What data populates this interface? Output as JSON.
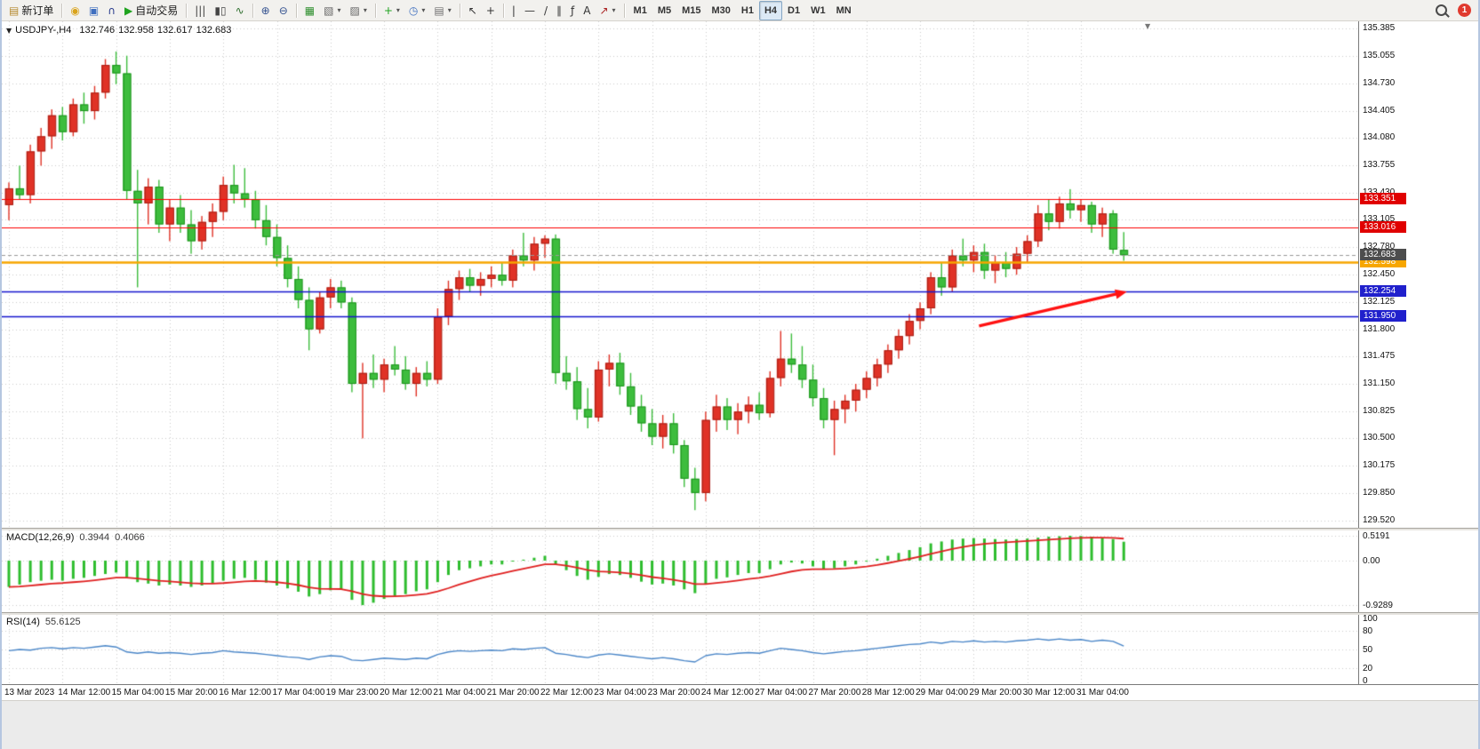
{
  "toolbar": {
    "groups": [
      {
        "items": [
          {
            "name": "new-order-button",
            "glyph": "▤",
            "glyph_color": "#b5892e",
            "label": "新订单"
          }
        ]
      },
      {
        "items": [
          {
            "name": "market-watch-button",
            "glyph": "◉",
            "glyph_color": "#d9a31b"
          },
          {
            "name": "navigator-button",
            "glyph": "▣",
            "glyph_color": "#3f6fbf"
          },
          {
            "name": "support-button",
            "glyph": "∩",
            "glyph_color": "#273a8c"
          },
          {
            "name": "auto-trading-button",
            "glyph": "▶",
            "glyph_color": "#1fa31f",
            "label": "自动交易"
          }
        ]
      },
      {
        "items": [
          {
            "name": "bar-chart-button",
            "glyph": "|||",
            "glyph_color": "#444444"
          },
          {
            "name": "candlestick-chart-button",
            "glyph": "▮▯",
            "glyph_color": "#444444"
          },
          {
            "name": "line-chart-button",
            "glyph": "∿",
            "glyph_color": "#2f6f2f"
          }
        ]
      },
      {
        "items": [
          {
            "name": "zoom-in-button",
            "glyph": "⊕",
            "glyph_color": "#33518f"
          },
          {
            "name": "zoom-out-button",
            "glyph": "⊖",
            "glyph_color": "#33518f"
          }
        ]
      },
      {
        "items": [
          {
            "name": "tile-windows-button",
            "glyph": "▦",
            "glyph_color": "#2f8f2f"
          },
          {
            "name": "new-chart-button",
            "glyph": "▧",
            "glyph_color": "#666666",
            "dropdown": true
          },
          {
            "name": "profiles-button",
            "glyph": "▨",
            "glyph_color": "#666666",
            "dropdown": true
          }
        ]
      },
      {
        "items": [
          {
            "name": "indicators-button",
            "glyph": "+",
            "glyph_color": "#1fa31f",
            "dropdown": true
          },
          {
            "name": "periods-button",
            "glyph": "◷",
            "glyph_color": "#3f6fbf",
            "dropdown": true
          },
          {
            "name": "templates-button",
            "glyph": "▤",
            "glyph_color": "#707070",
            "dropdown": true
          }
        ]
      },
      {
        "items": [
          {
            "name": "cursor-button",
            "glyph": "↖",
            "glyph_color": "#333333"
          },
          {
            "name": "crosshair-button",
            "glyph": "+",
            "glyph_color": "#333333"
          }
        ]
      },
      {
        "items": [
          {
            "name": "vertical-line-button",
            "glyph": "|",
            "glyph_color": "#333333"
          },
          {
            "name": "horizontal-line-button",
            "glyph": "—",
            "glyph_color": "#333333"
          },
          {
            "name": "trendline-button",
            "glyph": "/",
            "glyph_color": "#333333"
          },
          {
            "name": "channel-button",
            "glyph": "∥",
            "glyph_color": "#333333"
          },
          {
            "name": "fibonacci-button",
            "glyph": "ƒ",
            "glyph_color": "#333333"
          },
          {
            "name": "text-button",
            "glyph": "A",
            "glyph_color": "#333333"
          },
          {
            "name": "arrows-button",
            "glyph": "↗",
            "glyph_color": "#aa2222",
            "dropdown": true
          }
        ]
      },
      {
        "kind": "timeframes"
      }
    ],
    "timeframes": [
      {
        "label": "M1"
      },
      {
        "label": "M5"
      },
      {
        "label": "M15"
      },
      {
        "label": "M30"
      },
      {
        "label": "H1"
      },
      {
        "label": "H4",
        "active": true
      },
      {
        "label": "D1"
      },
      {
        "label": "W1"
      },
      {
        "label": "MN"
      }
    ],
    "notification": {
      "count": "1",
      "color": "#e03a2e"
    }
  },
  "chart_header": {
    "collapse_glyph": "▼",
    "shift_marker": "▼",
    "symbol_period": "USDJPY-,H4",
    "open": "132.746",
    "high": "132.958",
    "low": "132.617",
    "close": "132.683"
  },
  "chart_data": {
    "type": "candlestick",
    "symbol": "USDJPY-",
    "timeframe": "H4",
    "colors": {
      "up_fill": "#e03226",
      "up_stroke": "#a81f15",
      "down_fill": "#3dbd3d",
      "down_stroke": "#1e941e",
      "grid": "#cdcdcd",
      "background": "#ffffff"
    },
    "price_axis": {
      "top_value": 135.385,
      "bottom_value": 129.52,
      "ticks": [
        "135.385",
        "135.055",
        "134.730",
        "134.405",
        "134.080",
        "133.755",
        "133.430",
        "133.105",
        "132.780",
        "132.450",
        "132.125",
        "131.800",
        "131.475",
        "131.150",
        "130.825",
        "130.500",
        "130.175",
        "129.850",
        "129.520"
      ]
    },
    "time_axis": {
      "index_step": 5,
      "labels": [
        "13 Mar 2023",
        "14 Mar 12:00",
        "15 Mar 04:00",
        "15 Mar 20:00",
        "16 Mar 12:00",
        "17 Mar 04:00",
        "19 Mar 23:00",
        "20 Mar 12:00",
        "21 Mar 04:00",
        "21 Mar 20:00",
        "22 Mar 12:00",
        "23 Mar 04:00",
        "23 Mar 20:00",
        "24 Mar 12:00",
        "27 Mar 04:00",
        "27 Mar 20:00",
        "28 Mar 12:00",
        "29 Mar 04:00",
        "29 Mar 20:00",
        "30 Mar 12:00",
        "31 Mar 04:00"
      ]
    },
    "hlines": [
      {
        "value": 133.351,
        "label": "133.351",
        "color": "#fe0000",
        "badge_color": "#e00000",
        "width": 1.2
      },
      {
        "value": 133.016,
        "label": "133.016",
        "color": "#fe0000",
        "badge_color": "#e00000",
        "width": 1.2
      },
      {
        "value": 132.598,
        "label": "132.598",
        "color": "#f7a600",
        "badge_color": "#f7a600",
        "width": 2.4
      },
      {
        "value": 132.254,
        "label": "132.254",
        "color": "#1515cd",
        "badge_color": "#2020cc",
        "width": 1.6
      },
      {
        "value": 131.95,
        "label": "131.950",
        "color": "#1515cd",
        "badge_color": "#2020cc",
        "width": 1.6
      }
    ],
    "current_price": {
      "value": 132.683,
      "label": "132.683",
      "badge_color": "#4d4d4d",
      "line_color": "#999999"
    },
    "arrow": {
      "from_index": 90.5,
      "from_price": 131.84,
      "to_index": 104.3,
      "to_price": 132.25,
      "color": "#ff1111"
    },
    "candles": [
      [
        133.28,
        133.55,
        133.1,
        133.48
      ],
      [
        133.48,
        133.75,
        133.35,
        133.4
      ],
      [
        133.4,
        134.0,
        133.3,
        133.92
      ],
      [
        133.92,
        134.2,
        133.75,
        134.1
      ],
      [
        134.1,
        134.42,
        133.95,
        134.35
      ],
      [
        134.35,
        134.45,
        134.05,
        134.15
      ],
      [
        134.15,
        134.55,
        134.1,
        134.48
      ],
      [
        134.48,
        134.62,
        134.25,
        134.4
      ],
      [
        134.4,
        134.7,
        134.3,
        134.62
      ],
      [
        134.62,
        135.02,
        134.55,
        134.95
      ],
      [
        134.95,
        135.11,
        134.72,
        134.85
      ],
      [
        134.85,
        135.06,
        133.35,
        133.45
      ],
      [
        133.45,
        133.7,
        132.3,
        133.3
      ],
      [
        133.3,
        133.6,
        133.05,
        133.5
      ],
      [
        133.5,
        133.58,
        132.95,
        133.05
      ],
      [
        133.05,
        133.35,
        132.85,
        133.25
      ],
      [
        133.25,
        133.4,
        132.95,
        133.05
      ],
      [
        133.05,
        133.22,
        132.7,
        132.85
      ],
      [
        132.85,
        133.15,
        132.75,
        133.08
      ],
      [
        133.08,
        133.3,
        132.9,
        133.2
      ],
      [
        133.2,
        133.62,
        133.1,
        133.52
      ],
      [
        133.52,
        133.76,
        133.3,
        133.42
      ],
      [
        133.42,
        133.72,
        133.25,
        133.35
      ],
      [
        133.35,
        133.45,
        133.0,
        133.1
      ],
      [
        133.1,
        133.28,
        132.8,
        132.9
      ],
      [
        132.9,
        133.05,
        132.55,
        132.65
      ],
      [
        132.65,
        132.8,
        132.3,
        132.4
      ],
      [
        132.4,
        132.55,
        132.05,
        132.15
      ],
      [
        132.15,
        132.3,
        131.55,
        131.8
      ],
      [
        131.8,
        132.25,
        131.75,
        132.18
      ],
      [
        132.18,
        132.4,
        132.05,
        132.3
      ],
      [
        132.3,
        132.38,
        132.05,
        132.12
      ],
      [
        132.12,
        132.18,
        131.05,
        131.15
      ],
      [
        131.15,
        131.4,
        130.5,
        131.28
      ],
      [
        131.28,
        131.5,
        131.1,
        131.2
      ],
      [
        131.2,
        131.45,
        131.05,
        131.38
      ],
      [
        131.38,
        131.6,
        131.25,
        131.32
      ],
      [
        131.32,
        131.48,
        131.08,
        131.15
      ],
      [
        131.15,
        131.35,
        131.0,
        131.28
      ],
      [
        131.28,
        131.42,
        131.12,
        131.2
      ],
      [
        131.2,
        132.05,
        131.15,
        131.95
      ],
      [
        131.95,
        132.38,
        131.85,
        132.28
      ],
      [
        132.28,
        132.5,
        132.15,
        132.42
      ],
      [
        132.42,
        132.52,
        132.25,
        132.32
      ],
      [
        132.32,
        132.48,
        132.2,
        132.4
      ],
      [
        132.4,
        132.55,
        132.3,
        132.45
      ],
      [
        132.45,
        132.6,
        132.32,
        132.38
      ],
      [
        132.38,
        132.75,
        132.3,
        132.68
      ],
      [
        132.68,
        132.95,
        132.55,
        132.62
      ],
      [
        132.62,
        132.9,
        132.5,
        132.82
      ],
      [
        132.82,
        132.92,
        132.65,
        132.88
      ],
      [
        132.88,
        132.93,
        131.15,
        131.28
      ],
      [
        131.28,
        131.48,
        131.08,
        131.18
      ],
      [
        131.18,
        131.35,
        130.72,
        130.85
      ],
      [
        130.85,
        131.1,
        130.62,
        130.75
      ],
      [
        130.75,
        131.42,
        130.7,
        131.32
      ],
      [
        131.32,
        131.5,
        131.12,
        131.4
      ],
      [
        131.4,
        131.52,
        131.02,
        131.12
      ],
      [
        131.12,
        131.28,
        130.78,
        130.88
      ],
      [
        130.88,
        131.02,
        130.58,
        130.68
      ],
      [
        130.68,
        130.85,
        130.42,
        130.52
      ],
      [
        130.52,
        130.78,
        130.38,
        130.68
      ],
      [
        130.68,
        130.8,
        130.32,
        130.42
      ],
      [
        130.42,
        130.48,
        129.92,
        130.02
      ],
      [
        130.02,
        130.15,
        129.645,
        129.85
      ],
      [
        129.85,
        130.82,
        129.75,
        130.72
      ],
      [
        130.72,
        131.02,
        130.58,
        130.88
      ],
      [
        130.88,
        130.98,
        130.6,
        130.72
      ],
      [
        130.72,
        130.92,
        130.55,
        130.82
      ],
      [
        130.82,
        131.0,
        130.68,
        130.9
      ],
      [
        130.9,
        131.05,
        130.72,
        130.8
      ],
      [
        130.8,
        131.3,
        130.75,
        131.22
      ],
      [
        131.22,
        131.78,
        131.12,
        131.45
      ],
      [
        131.45,
        131.75,
        131.28,
        131.38
      ],
      [
        131.38,
        131.6,
        131.1,
        131.2
      ],
      [
        131.2,
        131.38,
        130.88,
        130.98
      ],
      [
        130.98,
        131.1,
        130.62,
        130.72
      ],
      [
        130.72,
        130.95,
        130.3,
        130.85
      ],
      [
        130.85,
        131.02,
        130.68,
        130.95
      ],
      [
        130.95,
        131.15,
        130.82,
        131.08
      ],
      [
        131.08,
        131.3,
        130.98,
        131.22
      ],
      [
        131.22,
        131.45,
        131.12,
        131.38
      ],
      [
        131.38,
        131.62,
        131.28,
        131.55
      ],
      [
        131.55,
        131.8,
        131.45,
        131.72
      ],
      [
        131.72,
        131.98,
        131.62,
        131.9
      ],
      [
        131.9,
        132.12,
        131.8,
        132.05
      ],
      [
        132.05,
        132.48,
        131.98,
        132.42
      ],
      [
        132.42,
        132.6,
        132.2,
        132.3
      ],
      [
        132.3,
        132.75,
        132.25,
        132.68
      ],
      [
        132.68,
        132.88,
        132.55,
        132.62
      ],
      [
        132.62,
        132.8,
        132.48,
        132.72
      ],
      [
        132.72,
        132.82,
        132.4,
        132.5
      ],
      [
        132.5,
        132.68,
        132.35,
        132.6
      ],
      [
        132.6,
        132.72,
        132.42,
        132.52
      ],
      [
        132.52,
        132.78,
        132.45,
        132.7
      ],
      [
        132.7,
        132.92,
        132.6,
        132.85
      ],
      [
        132.85,
        133.28,
        132.78,
        133.18
      ],
      [
        133.18,
        133.35,
        132.98,
        133.08
      ],
      [
        133.08,
        133.38,
        133.0,
        133.3
      ],
      [
        133.3,
        133.47,
        133.12,
        133.22
      ],
      [
        133.22,
        133.35,
        133.08,
        133.28
      ],
      [
        133.28,
        133.32,
        132.95,
        133.05
      ],
      [
        133.05,
        133.25,
        132.9,
        133.18
      ],
      [
        133.18,
        133.22,
        132.7,
        132.75
      ],
      [
        132.746,
        132.958,
        132.617,
        132.683
      ]
    ],
    "macd": {
      "title": "MACD(12,26,9)",
      "value_main": "0.3944",
      "value_signal": "0.4066",
      "max": 0.5191,
      "min": -0.9289,
      "axis_labels": [
        "0.5191",
        "0.00",
        "-0.9289"
      ],
      "axis_values": [
        0.5191,
        0,
        -0.9289
      ],
      "histogram_color": "#2ebd2e",
      "signal_color": "#e02020",
      "values": [
        -0.55,
        -0.5,
        -0.45,
        -0.42,
        -0.4,
        -0.42,
        -0.38,
        -0.36,
        -0.32,
        -0.28,
        -0.25,
        -0.35,
        -0.45,
        -0.48,
        -0.52,
        -0.5,
        -0.52,
        -0.55,
        -0.52,
        -0.48,
        -0.42,
        -0.38,
        -0.36,
        -0.4,
        -0.46,
        -0.52,
        -0.58,
        -0.65,
        -0.75,
        -0.7,
        -0.62,
        -0.6,
        -0.82,
        -0.93,
        -0.88,
        -0.8,
        -0.74,
        -0.7,
        -0.64,
        -0.6,
        -0.45,
        -0.3,
        -0.2,
        -0.16,
        -0.12,
        -0.08,
        -0.08,
        -0.02,
        0.02,
        0.06,
        0.1,
        -0.08,
        -0.2,
        -0.32,
        -0.4,
        -0.34,
        -0.28,
        -0.3,
        -0.36,
        -0.44,
        -0.5,
        -0.48,
        -0.52,
        -0.6,
        -0.68,
        -0.5,
        -0.38,
        -0.35,
        -0.3,
        -0.26,
        -0.26,
        -0.18,
        -0.08,
        -0.04,
        -0.06,
        -0.12,
        -0.18,
        -0.16,
        -0.12,
        -0.08,
        -0.02,
        0.04,
        0.1,
        0.16,
        0.22,
        0.28,
        0.36,
        0.4,
        0.44,
        0.46,
        0.47,
        0.46,
        0.45,
        0.44,
        0.45,
        0.46,
        0.48,
        0.5,
        0.51,
        0.5191,
        0.515,
        0.5,
        0.48,
        0.45,
        0.3944
      ]
    },
    "rsi": {
      "title": "RSI(14)",
      "value": "55.6125",
      "line_color": "#4a86c8",
      "levels": [
        80,
        50,
        20
      ],
      "axis_labels": [
        {
          "v": 100,
          "t": "100"
        },
        {
          "v": 80,
          "t": "80"
        },
        {
          "v": 50,
          "t": "50"
        },
        {
          "v": 20,
          "t": "20"
        },
        {
          "v": 0,
          "t": "0"
        }
      ],
      "values": [
        48,
        50,
        49,
        52,
        53,
        51,
        53,
        52,
        54,
        56,
        54,
        46,
        44,
        46,
        44,
        45,
        44,
        42,
        44,
        45,
        48,
        46,
        45,
        44,
        42,
        40,
        38,
        37,
        34,
        38,
        40,
        39,
        33,
        32,
        34,
        36,
        35,
        34,
        36,
        35,
        42,
        46,
        48,
        47,
        48,
        49,
        48,
        51,
        50,
        52,
        53,
        44,
        42,
        39,
        37,
        41,
        43,
        41,
        39,
        37,
        35,
        37,
        35,
        32,
        30,
        40,
        43,
        42,
        44,
        45,
        44,
        48,
        52,
        50,
        48,
        45,
        43,
        45,
        47,
        48,
        50,
        52,
        54,
        56,
        58,
        59,
        62,
        60,
        63,
        62,
        64,
        62,
        63,
        62,
        64,
        65,
        67,
        65,
        67,
        65,
        66,
        63,
        65,
        63,
        55.6
      ]
    }
  }
}
